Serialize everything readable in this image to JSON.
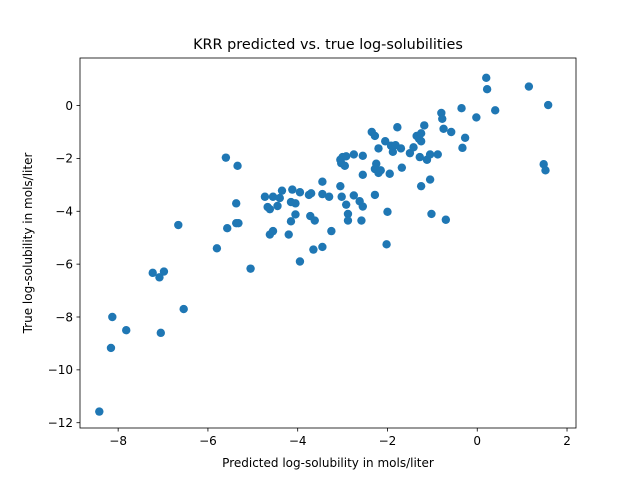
{
  "chart_data": {
    "type": "scatter",
    "title": "KRR predicted vs. true log-solubilities",
    "xlabel": "Predicted log-solubility in mols/liter",
    "ylabel": "True log-solubility in mols/liter",
    "xlim": [
      -8.85,
      2.2
    ],
    "ylim": [
      -12.2,
      1.8
    ],
    "xticks": [
      -8,
      -6,
      -4,
      -2,
      0,
      2
    ],
    "yticks": [
      -12,
      -10,
      -8,
      -6,
      -4,
      -2,
      0
    ],
    "xtick_labels": [
      "−8",
      "−6",
      "−4",
      "−2",
      "0",
      "2"
    ],
    "ytick_labels": [
      "−12",
      "−10",
      "−8",
      "−6",
      "−4",
      "−2",
      "0"
    ],
    "grid": false,
    "marker_color": "#1f77b4",
    "series": [
      {
        "points": [
          [
            -8.42,
            -11.58
          ],
          [
            -8.16,
            -9.17
          ],
          [
            -8.13,
            -8.0
          ],
          [
            -7.82,
            -8.5
          ],
          [
            -7.23,
            -6.33
          ],
          [
            -7.08,
            -6.5
          ],
          [
            -6.98,
            -6.28
          ],
          [
            -7.05,
            -8.6
          ],
          [
            -6.66,
            -4.52
          ],
          [
            -6.54,
            -7.7
          ],
          [
            -5.8,
            -5.4
          ],
          [
            -5.6,
            -1.97
          ],
          [
            -5.57,
            -4.64
          ],
          [
            -5.34,
            -2.28
          ],
          [
            -5.37,
            -3.7
          ],
          [
            -5.37,
            -4.45
          ],
          [
            -5.32,
            -4.45
          ],
          [
            -5.05,
            -6.17
          ],
          [
            -4.73,
            -3.45
          ],
          [
            -4.67,
            -3.84
          ],
          [
            -4.62,
            -3.92
          ],
          [
            -4.55,
            -3.45
          ],
          [
            -4.62,
            -4.88
          ],
          [
            -4.55,
            -4.75
          ],
          [
            -4.45,
            -3.8
          ],
          [
            -4.4,
            -3.5
          ],
          [
            -4.35,
            -3.22
          ],
          [
            -4.12,
            -3.18
          ],
          [
            -4.05,
            -3.7
          ],
          [
            -4.15,
            -3.65
          ],
          [
            -4.15,
            -4.38
          ],
          [
            -4.05,
            -4.12
          ],
          [
            -3.95,
            -3.28
          ],
          [
            -4.2,
            -4.88
          ],
          [
            -3.95,
            -5.9
          ],
          [
            -3.75,
            -3.38
          ],
          [
            -3.7,
            -3.32
          ],
          [
            -3.72,
            -4.18
          ],
          [
            -3.62,
            -4.35
          ],
          [
            -3.65,
            -5.45
          ],
          [
            -3.45,
            -2.88
          ],
          [
            -3.45,
            -3.35
          ],
          [
            -3.45,
            -5.35
          ],
          [
            -3.3,
            -3.45
          ],
          [
            -3.25,
            -4.75
          ],
          [
            -3.05,
            -2.05
          ],
          [
            -3.0,
            -1.95
          ],
          [
            -3.03,
            -2.18
          ],
          [
            -2.95,
            -2.28
          ],
          [
            -2.92,
            -1.92
          ],
          [
            -3.05,
            -3.05
          ],
          [
            -3.02,
            -3.45
          ],
          [
            -2.92,
            -3.75
          ],
          [
            -2.88,
            -4.1
          ],
          [
            -2.88,
            -4.35
          ],
          [
            -2.75,
            -1.85
          ],
          [
            -2.75,
            -3.4
          ],
          [
            -2.62,
            -3.62
          ],
          [
            -2.55,
            -3.82
          ],
          [
            -2.58,
            -4.35
          ],
          [
            -2.55,
            -1.9
          ],
          [
            -2.55,
            -2.62
          ],
          [
            -2.35,
            -1.0
          ],
          [
            -2.28,
            -1.15
          ],
          [
            -2.25,
            -2.2
          ],
          [
            -2.28,
            -2.4
          ],
          [
            -2.28,
            -3.38
          ],
          [
            -2.2,
            -1.62
          ],
          [
            -2.2,
            -2.55
          ],
          [
            -2.15,
            -2.45
          ],
          [
            -2.05,
            -1.35
          ],
          [
            -2.0,
            -4.02
          ],
          [
            -2.02,
            -5.25
          ],
          [
            -1.95,
            -2.58
          ],
          [
            -1.88,
            -1.75
          ],
          [
            -1.92,
            -1.52
          ],
          [
            -1.82,
            -1.5
          ],
          [
            -1.78,
            -0.82
          ],
          [
            -1.7,
            -1.62
          ],
          [
            -1.68,
            -2.35
          ],
          [
            -1.5,
            -1.8
          ],
          [
            -1.42,
            -1.58
          ],
          [
            -1.35,
            -1.15
          ],
          [
            -1.3,
            -1.25
          ],
          [
            -1.25,
            -1.35
          ],
          [
            -1.28,
            -1.95
          ],
          [
            -1.25,
            -1.05
          ],
          [
            -1.25,
            -3.05
          ],
          [
            -1.18,
            -0.75
          ],
          [
            -1.12,
            -2.05
          ],
          [
            -1.05,
            -1.85
          ],
          [
            -1.05,
            -2.8
          ],
          [
            -1.02,
            -4.1
          ],
          [
            -0.88,
            -1.85
          ],
          [
            -0.8,
            -0.28
          ],
          [
            -0.78,
            -0.5
          ],
          [
            -0.75,
            -0.88
          ],
          [
            -0.7,
            -4.32
          ],
          [
            -0.58,
            -1.0
          ],
          [
            -0.35,
            -0.1
          ],
          [
            -0.33,
            -1.6
          ],
          [
            -0.27,
            -1.22
          ],
          [
            -0.02,
            -0.45
          ],
          [
            0.2,
            1.05
          ],
          [
            0.22,
            0.62
          ],
          [
            0.4,
            -0.18
          ],
          [
            1.15,
            0.72
          ],
          [
            1.48,
            -2.22
          ],
          [
            1.52,
            -2.45
          ],
          [
            1.58,
            0.02
          ]
        ]
      }
    ]
  }
}
